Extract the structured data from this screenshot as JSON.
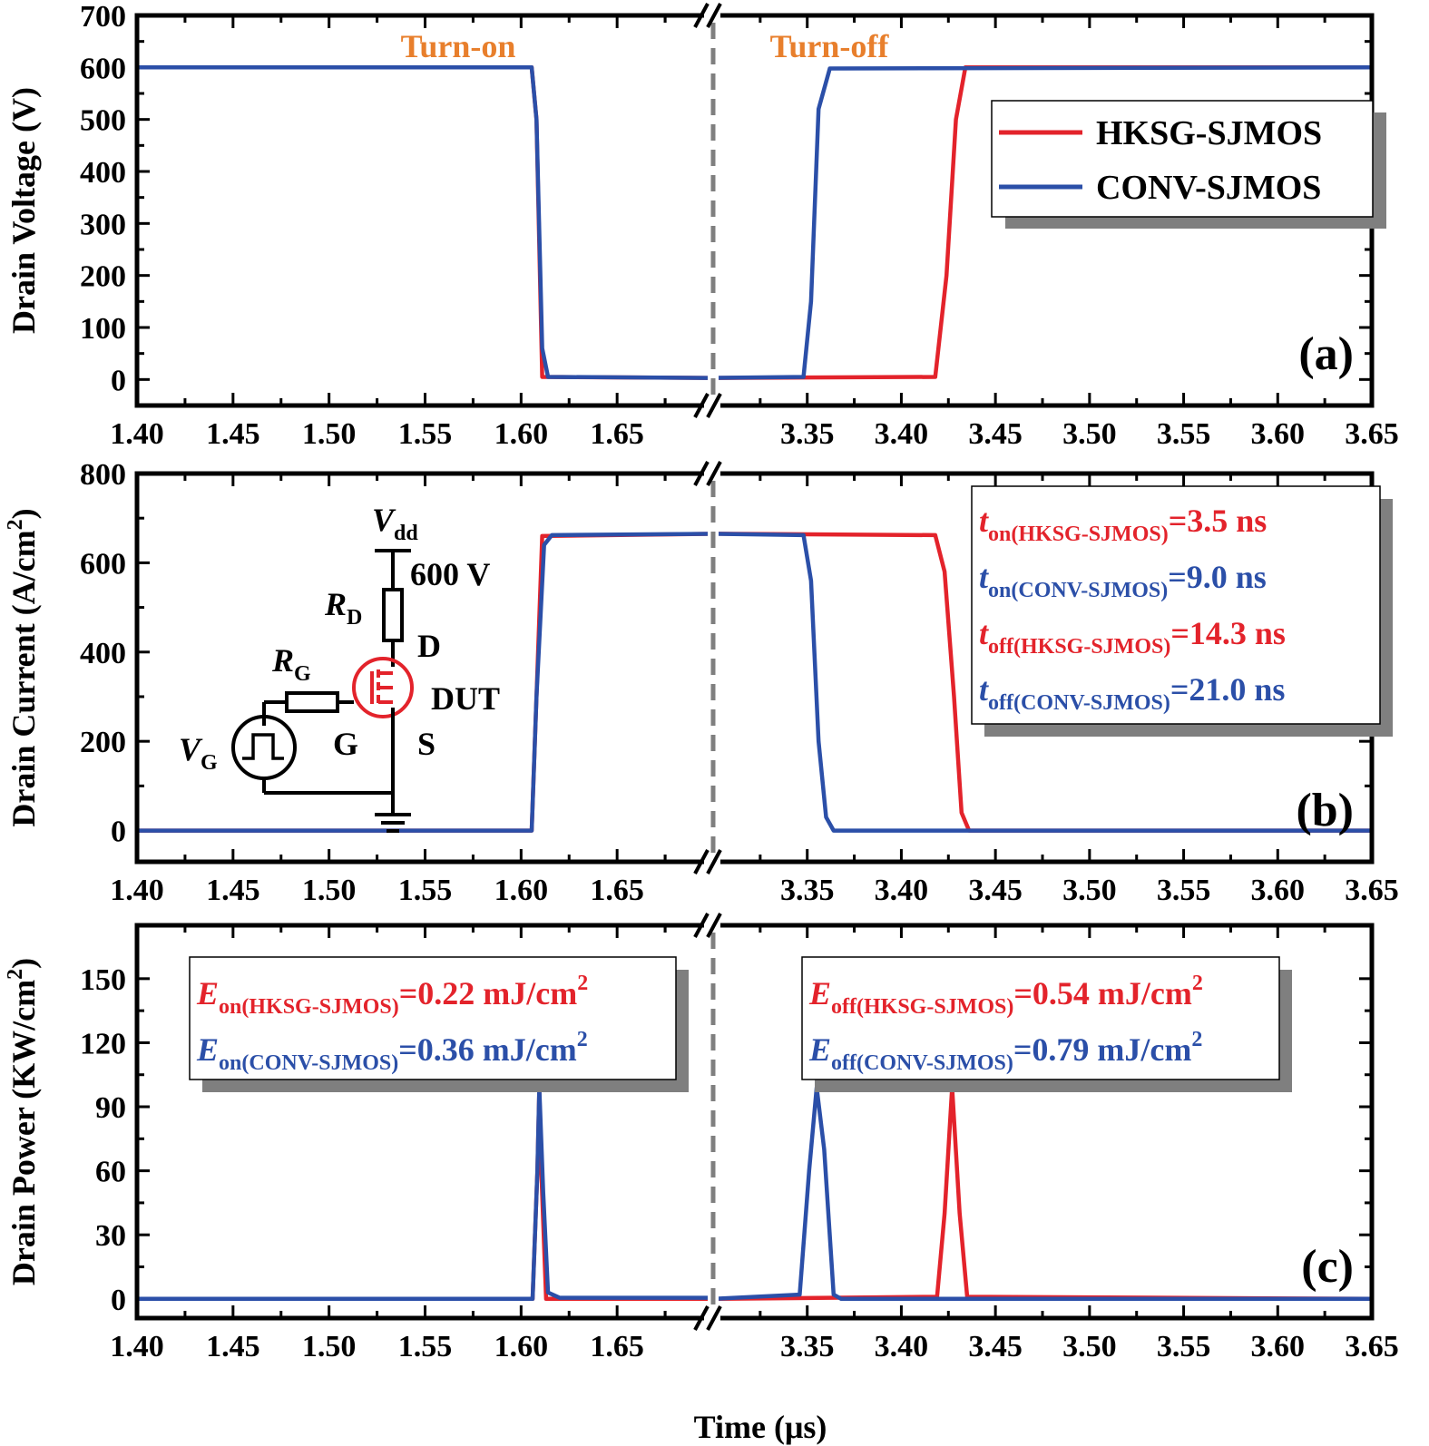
{
  "colors": {
    "hksg": "#E3232B",
    "conv": "#2B4FA8",
    "turn_label": "#E87F2C",
    "frame": "#000000",
    "break_line": "#7F7F7F",
    "shadow": "#7F7F7F"
  },
  "chart_data": [
    {
      "panel": "(a)",
      "type": "line",
      "ylabel": "Drain Voltage (V)",
      "ylim": [
        -50,
        700
      ],
      "yticks": [
        "0",
        "100",
        "200",
        "300",
        "400",
        "500",
        "600",
        "700"
      ],
      "xlabel": "",
      "x_segments": [
        {
          "xlim": [
            1.4,
            1.7
          ]
        },
        {
          "xlim": [
            3.3,
            3.65
          ]
        }
      ],
      "xticks": [
        "1.40",
        "1.45",
        "1.50",
        "1.55",
        "1.60",
        "1.65",
        "3.35",
        "3.40",
        "3.45",
        "3.50",
        "3.55",
        "3.60",
        "3.65"
      ],
      "annotations": [
        "Turn-on",
        "Turn-off"
      ],
      "legend": {
        "position": "top-right",
        "entries": [
          "HKSG-SJMOS",
          "CONV-SJMOS"
        ]
      },
      "series": [
        {
          "name": "HKSG-SJMOS",
          "color": "#E3232B",
          "points": [
            [
              1.4,
              600
            ],
            [
              1.6055,
              600
            ],
            [
              1.608,
              500
            ],
            [
              1.611,
              5
            ],
            [
              1.7,
              3
            ],
            [
              3.3,
              3
            ],
            [
              3.418,
              5
            ],
            [
              3.424,
              200
            ],
            [
              3.429,
              500
            ],
            [
              3.434,
              600
            ],
            [
              3.65,
              600
            ]
          ]
        },
        {
          "name": "CONV-SJMOS",
          "color": "#2B4FA8",
          "points": [
            [
              1.4,
              600
            ],
            [
              1.6055,
              600
            ],
            [
              1.608,
              500
            ],
            [
              1.611,
              60
            ],
            [
              1.614,
              5
            ],
            [
              1.7,
              3
            ],
            [
              3.3,
              3
            ],
            [
              3.348,
              5
            ],
            [
              3.352,
              150
            ],
            [
              3.356,
              520
            ],
            [
              3.362,
              598
            ],
            [
              3.65,
              600
            ]
          ]
        }
      ],
      "label": "(a)"
    },
    {
      "panel": "(b)",
      "type": "line",
      "ylabel": "Drain Current (A/cm²)",
      "ylim": [
        -70,
        800
      ],
      "yticks": [
        "0",
        "200",
        "400",
        "600",
        "800"
      ],
      "xlabel": "",
      "x_segments": [
        {
          "xlim": [
            1.4,
            1.7
          ]
        },
        {
          "xlim": [
            3.3,
            3.65
          ]
        }
      ],
      "xticks": [
        "1.40",
        "1.45",
        "1.50",
        "1.55",
        "1.60",
        "1.65",
        "3.35",
        "3.40",
        "3.45",
        "3.50",
        "3.55",
        "3.60",
        "3.65"
      ],
      "annotations": [
        {
          "sym": "t",
          "sub": "on(HKSG-SJMOS)",
          "value": "=3.5 ns",
          "series": "HKSG-SJMOS"
        },
        {
          "sym": "t",
          "sub": "on(CONV-SJMOS)",
          "value": "=9.0 ns",
          "series": "CONV-SJMOS"
        },
        {
          "sym": "t",
          "sub": "off(HKSG-SJMOS)",
          "value": "=14.3 ns",
          "series": "HKSG-SJMOS"
        },
        {
          "sym": "t",
          "sub": "off(CONV-SJMOS)",
          "value": "=21.0 ns",
          "series": "CONV-SJMOS"
        }
      ],
      "inset": {
        "vdd_sym": "V",
        "vdd_sub": "dd",
        "vdd_value": "600 V",
        "rd_sym": "R",
        "rd_sub": "D",
        "rg_sym": "R",
        "rg_sub": "G",
        "vg_sym": "V",
        "vg_sub": "G",
        "drain": "D",
        "gate": "G",
        "source": "S",
        "dut": "DUT"
      },
      "series": [
        {
          "name": "HKSG-SJMOS",
          "color": "#E3232B",
          "points": [
            [
              1.4,
              0
            ],
            [
              1.6055,
              0
            ],
            [
              1.608,
              300
            ],
            [
              1.611,
              660
            ],
            [
              1.7,
              665
            ],
            [
              3.3,
              665
            ],
            [
              3.418,
              662
            ],
            [
              3.423,
              580
            ],
            [
              3.428,
              300
            ],
            [
              3.432,
              40
            ],
            [
              3.436,
              0
            ],
            [
              3.65,
              0
            ]
          ]
        },
        {
          "name": "CONV-SJMOS",
          "color": "#2B4FA8",
          "points": [
            [
              1.4,
              0
            ],
            [
              1.6055,
              0
            ],
            [
              1.608,
              300
            ],
            [
              1.612,
              640
            ],
            [
              1.616,
              662
            ],
            [
              1.7,
              665
            ],
            [
              3.3,
              665
            ],
            [
              3.348,
              662
            ],
            [
              3.352,
              560
            ],
            [
              3.356,
              200
            ],
            [
              3.36,
              30
            ],
            [
              3.364,
              0
            ],
            [
              3.65,
              0
            ]
          ]
        }
      ],
      "label": "(b)"
    },
    {
      "panel": "(c)",
      "type": "line",
      "ylabel": "Drain Power (KW/cm²)",
      "ylim": [
        -9,
        175
      ],
      "yticks": [
        "0",
        "30",
        "60",
        "90",
        "120",
        "150"
      ],
      "xlabel": "Time (μs)",
      "x_segments": [
        {
          "xlim": [
            1.4,
            1.7
          ]
        },
        {
          "xlim": [
            3.3,
            3.65
          ]
        }
      ],
      "xticks": [
        "1.40",
        "1.45",
        "1.50",
        "1.55",
        "1.60",
        "1.65",
        "3.35",
        "3.40",
        "3.45",
        "3.50",
        "3.55",
        "3.60",
        "3.65"
      ],
      "annotations": [
        {
          "sym": "E",
          "sub": "on(HKSG-SJMOS)",
          "value": "=0.22 mJ/cm",
          "sup": "2",
          "series": "HKSG-SJMOS"
        },
        {
          "sym": "E",
          "sub": "on(CONV-SJMOS)",
          "value": "=0.36 mJ/cm",
          "sup": "2",
          "series": "CONV-SJMOS"
        },
        {
          "sym": "E",
          "sub": "off(HKSG-SJMOS)",
          "value": "=0.54 mJ/cm",
          "sup": "2",
          "series": "HKSG-SJMOS"
        },
        {
          "sym": "E",
          "sub": "off(CONV-SJMOS)",
          "value": "=0.79 mJ/cm",
          "sup": "2",
          "series": "CONV-SJMOS"
        }
      ],
      "series": [
        {
          "name": "HKSG-SJMOS",
          "color": "#E3232B",
          "points": [
            [
              1.4,
              0
            ],
            [
              1.606,
              0
            ],
            [
              1.6085,
              60
            ],
            [
              1.6095,
              98
            ],
            [
              1.6105,
              60
            ],
            [
              1.613,
              0
            ],
            [
              1.7,
              0
            ],
            [
              3.3,
              0
            ],
            [
              3.419,
              1
            ],
            [
              3.423,
              40
            ],
            [
              3.427,
              99
            ],
            [
              3.431,
              40
            ],
            [
              3.435,
              1
            ],
            [
              3.65,
              0
            ]
          ]
        },
        {
          "name": "CONV-SJMOS",
          "color": "#2B4FA8",
          "points": [
            [
              1.4,
              0
            ],
            [
              1.606,
              0
            ],
            [
              1.6085,
              60
            ],
            [
              1.6095,
              99
            ],
            [
              1.6115,
              50
            ],
            [
              1.614,
              3
            ],
            [
              1.62,
              0.5
            ],
            [
              1.7,
              0.5
            ],
            [
              3.3,
              0
            ],
            [
              3.346,
              2
            ],
            [
              3.351,
              60
            ],
            [
              3.355,
              99
            ],
            [
              3.359,
              70
            ],
            [
              3.364,
              2
            ],
            [
              3.368,
              0
            ],
            [
              3.65,
              0
            ]
          ]
        }
      ],
      "label": "(c)"
    }
  ]
}
